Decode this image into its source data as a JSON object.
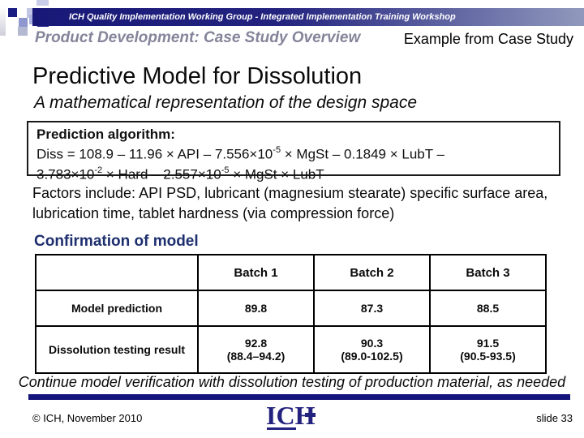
{
  "header": {
    "workshop_title": "ICH Quality Implementation Working Group - Integrated Implementation Training Workshop",
    "section_title": "Product Development: Case Study Overview",
    "context_label": "Example from Case Study"
  },
  "title": "Predictive Model for Dissolution",
  "subtitle": "A mathematical representation of the design space",
  "formula": {
    "heading": "Prediction algorithm:",
    "line1": {
      "a": "Diss = 108.9 – 11.96 × API – 7.556×10",
      "a_sup": "-5",
      "b": " × MgSt – 0.1849 × LubT –"
    },
    "line2": {
      "a": "3.783×10",
      "a_sup": "-2",
      "b": " × Hard – 2.557×10",
      "b_sup": "-5",
      "c": " × MgSt × LubT"
    }
  },
  "factors_text": "Factors include:  API PSD, lubricant (magnesium stearate) specific surface area, lubrication time, tablet hardness (via compression force)",
  "confirmation": {
    "heading": "Confirmation of model",
    "table": {
      "columns": [
        "",
        "Batch 1",
        "Batch 2",
        "Batch 3"
      ],
      "rows": [
        {
          "label": "Model prediction",
          "cells": [
            {
              "value": "89.8"
            },
            {
              "value": "87.3"
            },
            {
              "value": "88.5"
            }
          ]
        },
        {
          "label": "Dissolution testing result",
          "cells": [
            {
              "value": "92.8",
              "range": "(88.4–94.2)"
            },
            {
              "value": "90.3",
              "range": "(89.0-102.5)"
            },
            {
              "value": "91.5",
              "range": "(90.5-93.5)"
            }
          ]
        }
      ]
    }
  },
  "footnote": "Continue model verification with dissolution testing of production material, as needed",
  "footer": {
    "copyright": "© ICH, November 2010",
    "logo_text": "ICH",
    "slide_label": "slide 33"
  },
  "colors": {
    "navy": "#14147c",
    "banner_gradient_start": "#181878",
    "banner_gradient_end": "#9099bd",
    "heading_blue": "#1e2f6e",
    "section_title_gray": "#84849a"
  }
}
